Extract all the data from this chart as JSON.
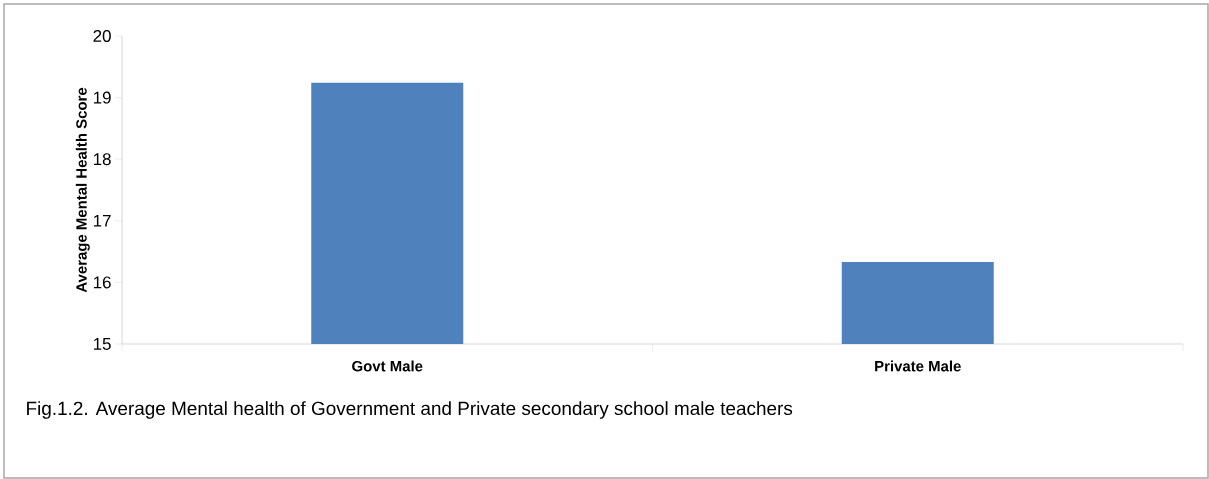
{
  "chart_data": {
    "type": "bar",
    "ylabel": "Average Mental Health Score",
    "categories": [
      "Govt Male",
      "Private Male"
    ],
    "values": [
      19.24,
      16.33
    ],
    "color": "#4f81bd",
    "ylim": [
      15,
      20
    ],
    "yticks": [
      15,
      16,
      17,
      18,
      19,
      20
    ],
    "grid": false,
    "annotations": [
      "Fig.1.2. Average Mental health of Government and Private secondary school male teachers"
    ]
  }
}
